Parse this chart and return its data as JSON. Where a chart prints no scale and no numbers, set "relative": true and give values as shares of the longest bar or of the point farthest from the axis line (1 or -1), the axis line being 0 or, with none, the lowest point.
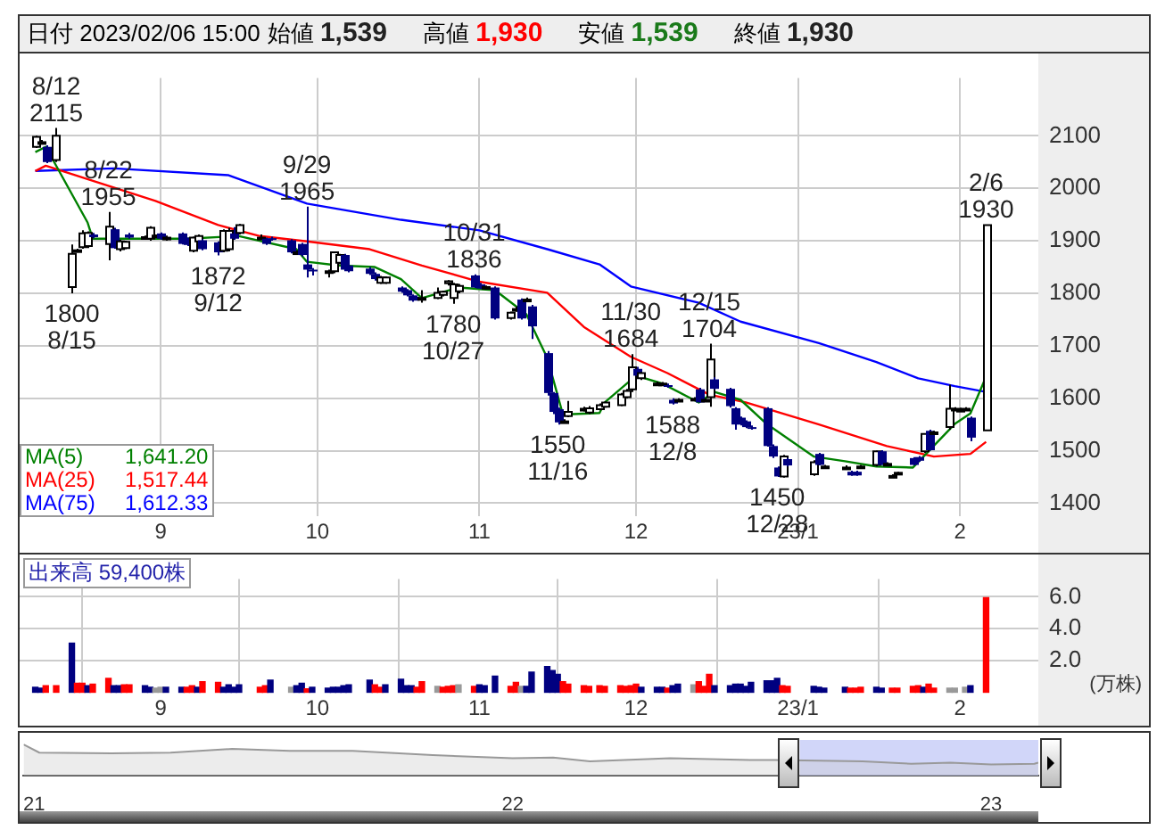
{
  "chart_data": [
    {
      "type": "candlestick",
      "title": "日付 2023/02/06 15:00",
      "annotations": [
        "始値 1,539",
        "高値 1,930",
        "安値 1,539",
        "終値 1,930",
        {
          "text": "8/12\n2115",
          "x": "2022-08-12",
          "y": 2115
        },
        {
          "text": "1800\n8/15",
          "x": "2022-08-15",
          "y": 1800
        },
        {
          "text": "8/22\n1955",
          "x": "2022-08-22",
          "y": 1955
        },
        {
          "text": "1872\n9/12",
          "x": "2022-09-12",
          "y": 1872
        },
        {
          "text": "9/29\n1965",
          "x": "2022-09-29",
          "y": 1965
        },
        {
          "text": "1780\n10/27",
          "x": "2022-10-27",
          "y": 1780
        },
        {
          "text": "10/31\n1836",
          "x": "2022-10-31",
          "y": 1836
        },
        {
          "text": "1550\n11/16",
          "x": "2022-11-16",
          "y": 1550
        },
        {
          "text": "11/30\n1684",
          "x": "2022-11-30",
          "y": 1684
        },
        {
          "text": "1588\n12/8",
          "x": "2022-12-08",
          "y": 1588
        },
        {
          "text": "12/15\n1704",
          "x": "2022-12-15",
          "y": 1704
        },
        {
          "text": "1450\n12/28",
          "x": "2022-12-28",
          "y": 1450
        },
        {
          "text": "2/6\n1930",
          "x": "2023-02-06",
          "y": 1930
        }
      ],
      "x": [
        "2022-08-08",
        "2022-08-09",
        "2022-08-10",
        "2022-08-12",
        "2022-08-15",
        "2022-08-16",
        "2022-08-17",
        "2022-08-18",
        "2022-08-19",
        "2022-08-22",
        "2022-08-23",
        "2022-08-24",
        "2022-08-25",
        "2022-08-26",
        "2022-08-29",
        "2022-08-30",
        "2022-08-31",
        "2022-09-01",
        "2022-09-02",
        "2022-09-05",
        "2022-09-06",
        "2022-09-07",
        "2022-09-08",
        "2022-09-09",
        "2022-09-12",
        "2022-09-13",
        "2022-09-14",
        "2022-09-15",
        "2022-09-16",
        "2022-09-20",
        "2022-09-21",
        "2022-09-22",
        "2022-09-26",
        "2022-09-27",
        "2022-09-28",
        "2022-09-29",
        "2022-09-30",
        "2022-10-03",
        "2022-10-04",
        "2022-10-05",
        "2022-10-06",
        "2022-10-07",
        "2022-10-11",
        "2022-10-12",
        "2022-10-13",
        "2022-10-14",
        "2022-10-17",
        "2022-10-18",
        "2022-10-19",
        "2022-10-20",
        "2022-10-21",
        "2022-10-24",
        "2022-10-25",
        "2022-10-26",
        "2022-10-27",
        "2022-10-28",
        "2022-10-31",
        "2022-11-01",
        "2022-11-02",
        "2022-11-04",
        "2022-11-07",
        "2022-11-08",
        "2022-11-09",
        "2022-11-10",
        "2022-11-11",
        "2022-11-14",
        "2022-11-15",
        "2022-11-16",
        "2022-11-17",
        "2022-11-18",
        "2022-11-21",
        "2022-11-22",
        "2022-11-24",
        "2022-11-25",
        "2022-11-28",
        "2022-11-29",
        "2022-11-30",
        "2022-12-01",
        "2022-12-02",
        "2022-12-05",
        "2022-12-06",
        "2022-12-07",
        "2022-12-08",
        "2022-12-09",
        "2022-12-12",
        "2022-12-13",
        "2022-12-14",
        "2022-12-15",
        "2022-12-16",
        "2022-12-19",
        "2022-12-20",
        "2022-12-21",
        "2022-12-22",
        "2022-12-23",
        "2022-12-26",
        "2022-12-27",
        "2022-12-28",
        "2022-12-29",
        "2022-12-30",
        "2023-01-04",
        "2023-01-05",
        "2023-01-06",
        "2023-01-10",
        "2023-01-11",
        "2023-01-12",
        "2023-01-13",
        "2023-01-16",
        "2023-01-17",
        "2023-01-18",
        "2023-01-19",
        "2023-01-20",
        "2023-01-23",
        "2023-01-24",
        "2023-01-25",
        "2023-01-26",
        "2023-01-27",
        "2023-01-30",
        "2023-01-31",
        "2023-02-01",
        "2023-02-02",
        "2023-02-03",
        "2023-02-06"
      ],
      "ohlc": [
        [
          2079,
          2100,
          2077,
          2098
        ],
        [
          2088,
          2092,
          2085,
          2088
        ],
        [
          2079,
          2082,
          2048,
          2050
        ],
        [
          2054,
          2115,
          2050,
          2100
        ],
        [
          1812,
          1893,
          1800,
          1875
        ],
        [
          1880,
          1885,
          1878,
          1882
        ],
        [
          1888,
          1920,
          1885,
          1914
        ],
        [
          1890,
          1918,
          1886,
          1915
        ],
        [
          1912,
          1915,
          1905,
          1907
        ],
        [
          1894,
          1955,
          1863,
          1927
        ],
        [
          1922,
          1925,
          1885,
          1886
        ],
        [
          1884,
          1902,
          1880,
          1899
        ],
        [
          1886,
          1900,
          1884,
          1898
        ],
        [
          1912,
          1915,
          1904,
          1906
        ],
        [
          1905,
          1910,
          1903,
          1907
        ],
        [
          1904,
          1928,
          1900,
          1925
        ],
        [
          1910,
          1912,
          1908,
          1910
        ],
        [
          1914,
          1916,
          1902,
          1904
        ],
        [
          1905,
          1910,
          1900,
          1906
        ],
        [
          1914,
          1916,
          1893,
          1894
        ],
        [
          1904,
          1906,
          1890,
          1892
        ],
        [
          1881,
          1908,
          1878,
          1906
        ],
        [
          1899,
          1912,
          1896,
          1909
        ],
        [
          1901,
          1903,
          1882,
          1884
        ],
        [
          1897,
          1899,
          1872,
          1878
        ],
        [
          1881,
          1922,
          1878,
          1919
        ],
        [
          1884,
          1925,
          1880,
          1919
        ],
        [
          1914,
          1926,
          1902,
          1904
        ],
        [
          1915,
          1932,
          1912,
          1930
        ],
        [
          1906,
          1912,
          1903,
          1906
        ],
        [
          1904,
          1906,
          1892,
          1894
        ],
        [
          1905,
          1908,
          1900,
          1903
        ],
        [
          1901,
          1903,
          1876,
          1878
        ],
        [
          1878,
          1882,
          1875,
          1878
        ],
        [
          1894,
          1896,
          1870,
          1873
        ],
        [
          1855,
          1965,
          1830,
          1845
        ],
        [
          1845,
          1848,
          1834,
          1843
        ],
        [
          1842,
          1845,
          1830,
          1842
        ],
        [
          1842,
          1880,
          1838,
          1878
        ],
        [
          1858,
          1875,
          1855,
          1873
        ],
        [
          1873,
          1875,
          1843,
          1845
        ],
        [
          1853,
          1855,
          1840,
          1842
        ],
        [
          1847,
          1850,
          1835,
          1837
        ],
        [
          1837,
          1840,
          1824,
          1827
        ],
        [
          1820,
          1833,
          1818,
          1830
        ],
        [
          1820,
          1832,
          1818,
          1830
        ],
        [
          1811,
          1813,
          1801,
          1803
        ],
        [
          1806,
          1808,
          1794,
          1796
        ],
        [
          1796,
          1798,
          1784,
          1786
        ],
        [
          1791,
          1793,
          1786,
          1788
        ],
        [
          1791,
          1806,
          1782,
          1791
        ],
        [
          1791,
          1811,
          1789,
          1801
        ],
        [
          1797,
          1805,
          1794,
          1803
        ],
        [
          1819,
          1825,
          1815,
          1823
        ],
        [
          1791,
          1820,
          1780,
          1817
        ],
        [
          1804,
          1818,
          1800,
          1814
        ],
        [
          1834,
          1836,
          1810,
          1811
        ],
        [
          1817,
          1820,
          1808,
          1809
        ],
        [
          1812,
          1815,
          1810,
          1812
        ],
        [
          1811,
          1813,
          1750,
          1752
        ],
        [
          1753,
          1765,
          1750,
          1763
        ],
        [
          1770,
          1775,
          1765,
          1770
        ],
        [
          1788,
          1790,
          1750,
          1752
        ],
        [
          1788,
          1792,
          1785,
          1788
        ],
        [
          1775,
          1778,
          1713,
          1737
        ],
        [
          1686,
          1690,
          1605,
          1610
        ],
        [
          1610,
          1612,
          1570,
          1574
        ],
        [
          1579,
          1582,
          1550,
          1554
        ],
        [
          1556,
          1560,
          1552,
          1556
        ],
        [
          1566,
          1595,
          1564,
          1574
        ],
        [
          1577,
          1584,
          1575,
          1580
        ],
        [
          1573,
          1585,
          1570,
          1581
        ],
        [
          1579,
          1590,
          1577,
          1587
        ],
        [
          1584,
          1594,
          1582,
          1592
        ],
        [
          1587,
          1610,
          1585,
          1607
        ],
        [
          1602,
          1618,
          1600,
          1614
        ],
        [
          1617,
          1684,
          1612,
          1659
        ],
        [
          1656,
          1660,
          1641,
          1643
        ],
        [
          1638,
          1650,
          1635,
          1648
        ],
        [
          1628,
          1632,
          1626,
          1628
        ],
        [
          1628,
          1631,
          1626,
          1628
        ],
        [
          1625,
          1628,
          1620,
          1624
        ],
        [
          1597,
          1600,
          1588,
          1590
        ],
        [
          1597,
          1600,
          1594,
          1597
        ],
        [
          1599,
          1602,
          1596,
          1599
        ],
        [
          1617,
          1620,
          1592,
          1592
        ],
        [
          1597,
          1600,
          1594,
          1597
        ],
        [
          1602,
          1704,
          1584,
          1674
        ],
        [
          1636,
          1640,
          1617,
          1618
        ],
        [
          1618,
          1620,
          1582,
          1585
        ],
        [
          1581,
          1583,
          1540,
          1550
        ],
        [
          1563,
          1565,
          1548,
          1550
        ],
        [
          1556,
          1558,
          1543,
          1545
        ],
        [
          1545,
          1548,
          1540,
          1543
        ],
        [
          1581,
          1583,
          1508,
          1509
        ],
        [
          1509,
          1512,
          1486,
          1489
        ],
        [
          1468,
          1470,
          1450,
          1451
        ],
        [
          1451,
          1492,
          1449,
          1489
        ],
        [
          1484,
          1486,
          1470,
          1472
        ],
        [
          1455,
          1482,
          1452,
          1478
        ],
        [
          1494,
          1496,
          1472,
          1473
        ],
        [
          1470,
          1473,
          1467,
          1470
        ],
        [
          1468,
          1472,
          1465,
          1468
        ],
        [
          1460,
          1462,
          1452,
          1453
        ],
        [
          1460,
          1462,
          1452,
          1453
        ],
        [
          1470,
          1473,
          1467,
          1470
        ],
        [
          1473,
          1500,
          1470,
          1499
        ],
        [
          1499,
          1501,
          1473,
          1473
        ],
        [
          1475,
          1478,
          1472,
          1475
        ],
        [
          1452,
          1455,
          1450,
          1452
        ],
        [
          1456,
          1460,
          1455,
          1458
        ],
        [
          1486,
          1488,
          1472,
          1473
        ],
        [
          1488,
          1490,
          1479,
          1481
        ],
        [
          1499,
          1532,
          1496,
          1532
        ],
        [
          1538,
          1540,
          1500,
          1501
        ],
        [
          1535,
          1538,
          1532,
          1535
        ],
        [
          1545,
          1626,
          1540,
          1580
        ],
        [
          1580,
          1583,
          1578,
          1580
        ],
        [
          1578,
          1582,
          1575,
          1578
        ],
        [
          1580,
          1583,
          1577,
          1580
        ],
        [
          1563,
          1565,
          1518,
          1525
        ],
        [
          1539,
          1930,
          1539,
          1930
        ]
      ],
      "series": [
        {
          "type": "line",
          "name": "MA(5) 1,641.20",
          "color": "#008000",
          "x": [
            "2022-08-08",
            "2022-08-10",
            "2022-08-18",
            "2022-08-19",
            "2022-08-25",
            "2022-09-06",
            "2022-09-16",
            "2022-09-27",
            "2022-09-29",
            "2022-10-05",
            "2022-10-12",
            "2022-10-17",
            "2022-10-21",
            "2022-10-28",
            "2022-11-04",
            "2022-11-10",
            "2022-11-14",
            "2022-11-17",
            "2022-11-24",
            "2022-11-25",
            "2022-12-01",
            "2022-12-06",
            "2022-12-13",
            "2022-12-16",
            "2022-12-21",
            "2022-12-26",
            "2023-01-04",
            "2023-01-10",
            "2023-01-16",
            "2023-01-23",
            "2023-01-26",
            "2023-01-31",
            "2023-02-03",
            "2023-02-06"
          ],
          "values": [
            2069,
            2079,
            1935,
            1904,
            1904,
            1904,
            1909,
            1884,
            1860,
            1853,
            1850,
            1827,
            1791,
            1811,
            1806,
            1760,
            1677,
            1569,
            1572,
            1592,
            1643,
            1628,
            1592,
            1612,
            1597,
            1551,
            1489,
            1480,
            1470,
            1468,
            1499,
            1551,
            1571,
            1641
          ]
        },
        {
          "type": "line",
          "name": "MA(25) 1,517.44",
          "color": "#ff0000",
          "x": [
            "2022-08-08",
            "2022-08-10",
            "2022-08-31",
            "2022-09-12",
            "2022-09-20",
            "2022-09-29",
            "2022-10-11",
            "2022-10-21",
            "2022-11-01",
            "2022-11-14",
            "2022-11-21",
            "2022-11-30",
            "2022-12-07",
            "2022-12-15",
            "2022-12-22",
            "2023-01-05",
            "2023-01-18",
            "2023-01-27",
            "2023-02-03",
            "2023-02-06"
          ],
          "values": [
            2033,
            2043,
            1976,
            1930,
            1909,
            1899,
            1884,
            1853,
            1822,
            1801,
            1736,
            1679,
            1648,
            1607,
            1592,
            1550,
            1509,
            1489,
            1494,
            1517
          ]
        },
        {
          "type": "line",
          "name": "MA(75) 1,612.33",
          "color": "#0000ff",
          "x": [
            "2022-08-08",
            "2022-08-23",
            "2022-09-14",
            "2022-09-29",
            "2022-10-17",
            "2022-11-01",
            "2022-11-14",
            "2022-11-24",
            "2022-11-30",
            "2022-12-13",
            "2022-12-21",
            "2023-01-05",
            "2023-01-16",
            "2023-01-24",
            "2023-01-31",
            "2023-02-06"
          ],
          "values": [
            2033,
            2038,
            2025,
            1971,
            1940,
            1920,
            1884,
            1855,
            1813,
            1782,
            1746,
            1705,
            1669,
            1638,
            1623,
            1612
          ]
        }
      ],
      "xlim": [
        "2022-08-05",
        "2023-02-16"
      ],
      "xticks": [
        {
          "value": "2022-09-01",
          "label": "9"
        },
        {
          "value": "2022-10-01",
          "label": "10"
        },
        {
          "value": "2022-11-01",
          "label": "11"
        },
        {
          "value": "2022-12-01",
          "label": "12"
        },
        {
          "value": "2023-01-01",
          "label": "23/1"
        },
        {
          "value": "2023-02-01",
          "label": "2"
        }
      ],
      "ylim": [
        1375,
        2210
      ],
      "yticks": [
        1400,
        1500,
        1600,
        1700,
        1800,
        1900,
        2000,
        2100
      ],
      "grid": true
    },
    {
      "type": "bar",
      "title": "出来高 59,400株",
      "ylabel": "(万株)",
      "x": [
        "2022-08-08",
        "2022-08-09",
        "2022-08-10",
        "2022-08-12",
        "2022-08-15",
        "2022-08-16",
        "2022-08-17",
        "2022-08-18",
        "2022-08-19",
        "2022-08-22",
        "2022-08-23",
        "2022-08-24",
        "2022-08-25",
        "2022-08-26",
        "2022-08-29",
        "2022-08-30",
        "2022-08-31",
        "2022-09-01",
        "2022-09-02",
        "2022-09-05",
        "2022-09-06",
        "2022-09-07",
        "2022-09-08",
        "2022-09-09",
        "2022-09-12",
        "2022-09-13",
        "2022-09-14",
        "2022-09-15",
        "2022-09-16",
        "2022-09-20",
        "2022-09-21",
        "2022-09-22",
        "2022-09-26",
        "2022-09-27",
        "2022-09-28",
        "2022-09-29",
        "2022-09-30",
        "2022-10-03",
        "2022-10-04",
        "2022-10-05",
        "2022-10-06",
        "2022-10-07",
        "2022-10-11",
        "2022-10-12",
        "2022-10-13",
        "2022-10-14",
        "2022-10-17",
        "2022-10-18",
        "2022-10-19",
        "2022-10-20",
        "2022-10-21",
        "2022-10-24",
        "2022-10-25",
        "2022-10-26",
        "2022-10-27",
        "2022-10-28",
        "2022-10-31",
        "2022-11-01",
        "2022-11-02",
        "2022-11-04",
        "2022-11-07",
        "2022-11-08",
        "2022-11-09",
        "2022-11-10",
        "2022-11-11",
        "2022-11-14",
        "2022-11-15",
        "2022-11-16",
        "2022-11-17",
        "2022-11-18",
        "2022-11-21",
        "2022-11-22",
        "2022-11-24",
        "2022-11-25",
        "2022-11-28",
        "2022-11-29",
        "2022-11-30",
        "2022-12-01",
        "2022-12-02",
        "2022-12-05",
        "2022-12-06",
        "2022-12-07",
        "2022-12-08",
        "2022-12-09",
        "2022-12-12",
        "2022-12-13",
        "2022-12-14",
        "2022-12-15",
        "2022-12-16",
        "2022-12-19",
        "2022-12-20",
        "2022-12-21",
        "2022-12-22",
        "2022-12-23",
        "2022-12-26",
        "2022-12-27",
        "2022-12-28",
        "2022-12-29",
        "2022-12-30",
        "2023-01-04",
        "2023-01-05",
        "2023-01-06",
        "2023-01-10",
        "2023-01-11",
        "2023-01-12",
        "2023-01-13",
        "2023-01-16",
        "2023-01-17",
        "2023-01-19",
        "2023-01-20",
        "2023-01-23",
        "2023-01-24",
        "2023-01-25",
        "2023-01-26",
        "2023-01-27",
        "2023-01-30",
        "2023-01-31",
        "2023-02-02",
        "2023-02-03",
        "2023-02-06"
      ],
      "values": [
        0.35,
        0.3,
        0.45,
        0.45,
        3.1,
        0.6,
        0.6,
        0.45,
        0.55,
        0.9,
        0.45,
        0.45,
        0.5,
        0.5,
        0.45,
        0.35,
        0.3,
        0.35,
        0.35,
        0.35,
        0.35,
        0.45,
        0.35,
        0.7,
        0.65,
        0.35,
        0.5,
        0.35,
        0.5,
        0.35,
        0.45,
        0.8,
        0.35,
        0.45,
        0.6,
        0.25,
        0.35,
        0.3,
        0.35,
        0.35,
        0.45,
        0.5,
        0.8,
        0.5,
        0.35,
        0.5,
        0.85,
        0.45,
        0.45,
        0.35,
        0.7,
        0.4,
        0.35,
        0.4,
        0.45,
        0.5,
        0.4,
        0.5,
        0.45,
        1.05,
        0.4,
        0.65,
        0.4,
        0.4,
        1.3,
        1.65,
        1.4,
        1.15,
        0.7,
        0.55,
        0.45,
        0.4,
        0.45,
        0.4,
        0.45,
        0.4,
        0.45,
        0.55,
        0.35,
        0.35,
        0.35,
        0.3,
        0.45,
        0.55,
        0.5,
        0.7,
        0.4,
        1.15,
        0.45,
        0.45,
        0.55,
        0.55,
        0.4,
        0.65,
        0.75,
        0.75,
        0.9,
        0.45,
        0.4,
        0.4,
        0.35,
        0.3,
        0.35,
        0.3,
        0.3,
        0.35,
        0.35,
        0.3,
        0.3,
        0.3,
        0.4,
        0.45,
        0.35,
        0.55,
        0.3,
        0.3,
        0.3,
        0.35,
        0.45,
        5.94
      ],
      "colors": [
        "#000080",
        "#000080",
        "#ff0000",
        "#ff0000",
        "#000080",
        "#ff0000",
        "#ff0000",
        "#000080",
        "#ff0000",
        "#ff0000",
        "#000080",
        "#000080",
        "#ff0000",
        "#ff0000",
        "#000080",
        "#000080",
        "#999999",
        "#999999",
        "#000080",
        "#000080",
        "#ff0000",
        "#ff0000",
        "#000080",
        "#ff0000",
        "#ff0000",
        "#000080",
        "#000080",
        "#000080",
        "#000080",
        "#ff0000",
        "#ff0000",
        "#000080",
        "#999999",
        "#000080",
        "#000080",
        "#ff0000",
        "#000080",
        "#000080",
        "#000080",
        "#000080",
        "#000080",
        "#000080",
        "#000080",
        "#ff0000",
        "#ff0000",
        "#000080",
        "#000080",
        "#000080",
        "#000080",
        "#ff0000",
        "#ff0000",
        "#999999",
        "#ff0000",
        "#ff0000",
        "#ff0000",
        "#999999",
        "#ff0000",
        "#000080",
        "#000080",
        "#000080",
        "#ff0000",
        "#ff0000",
        "#999999",
        "#000080",
        "#000080",
        "#000080",
        "#000080",
        "#000080",
        "#ff0000",
        "#ff0000",
        "#ff0000",
        "#ff0000",
        "#ff0000",
        "#ff0000",
        "#ff0000",
        "#ff0000",
        "#ff0000",
        "#ff0000",
        "#000080",
        "#000080",
        "#000080",
        "#ff0000",
        "#000080",
        "#000080",
        "#999999",
        "#ff0000",
        "#ff0000",
        "#ff0000",
        "#000080",
        "#000080",
        "#000080",
        "#000080",
        "#000080",
        "#000080",
        "#000080",
        "#000080",
        "#000080",
        "#ff0000",
        "#ff0000",
        "#000080",
        "#000080",
        "#000080",
        "#000080",
        "#ff0000",
        "#ff0000",
        "#ff0000",
        "#000080",
        "#000080",
        "#ff0000",
        "#ff0000",
        "#ff0000",
        "#ff0000",
        "#000080",
        "#ff0000",
        "#ff0000",
        "#999999",
        "#999999",
        "#999999",
        "#000080",
        "#ff0000"
      ],
      "xlim": [
        "2022-08-05",
        "2023-02-16"
      ],
      "xticks": [
        {
          "value": "2022-09-01",
          "label": "9"
        },
        {
          "value": "2022-10-01",
          "label": "10"
        },
        {
          "value": "2022-11-01",
          "label": "11"
        },
        {
          "value": "2022-12-01",
          "label": "12"
        },
        {
          "value": "2023-01-01",
          "label": "23/1"
        },
        {
          "value": "2023-02-01",
          "label": "2"
        }
      ],
      "ylim": [
        0,
        7.1
      ],
      "yticks": [
        {
          "value": 2,
          "label": "2.0"
        },
        {
          "value": 4,
          "label": "4.0"
        },
        {
          "value": 6,
          "label": "6.0"
        }
      ],
      "grid": true
    },
    {
      "type": "area",
      "relative": true,
      "color": "#999999",
      "x": [
        "2020-12-24",
        "2021-01-05",
        "2021-03-01",
        "2021-04-15",
        "2021-06-01",
        "2021-07-15",
        "2021-09-01",
        "2021-11-01",
        "2022-01-01",
        "2022-02-01",
        "2022-03-01",
        "2022-05-01",
        "2022-07-01",
        "2022-07-20",
        "2022-09-25",
        "2022-11-01",
        "2022-12-01",
        "2023-01-01",
        "2023-02-03",
        "2023-02-06"
      ],
      "values": [
        1,
        0.74,
        0.72,
        0.74,
        0.86,
        0.8,
        0.8,
        0.66,
        0.56,
        0.58,
        0.46,
        0.56,
        0.5,
        0.5,
        0.46,
        0.38,
        0.42,
        0.36,
        0.38,
        0.42
      ],
      "xlim": [
        "2020-12-24",
        "2023-02-06"
      ],
      "xticks": [
        {
          "value": "2021-01-01",
          "label": "21"
        },
        {
          "value": "2022-01-01",
          "label": "22"
        },
        {
          "value": "2023-01-01",
          "label": "23"
        }
      ],
      "bands": [
        {
          "axis": "x",
          "from": "2022-08-08",
          "to": "2023-02-06",
          "color": "#b3bbf5"
        }
      ]
    }
  ]
}
